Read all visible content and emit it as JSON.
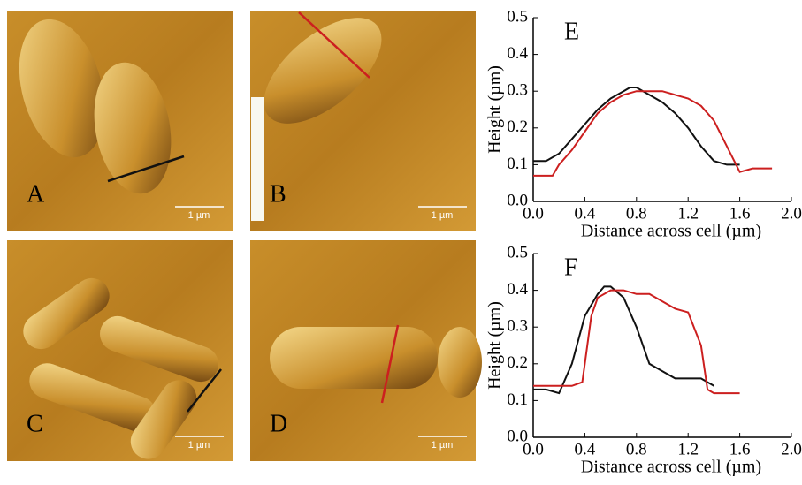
{
  "images": [
    {
      "label": "A",
      "scale_bar": "1 µm",
      "line_color": "#111111"
    },
    {
      "label": "B",
      "scale_bar": "1 µm",
      "line_color": "#cc1f1f"
    },
    {
      "label": "C",
      "scale_bar": "1 µm",
      "line_color": "#111111"
    },
    {
      "label": "D",
      "scale_bar": "1 µm",
      "line_color": "#cc1f1f"
    }
  ],
  "chart_data": [
    {
      "type": "line",
      "panel_label": "E",
      "x_label": "Distance across cell (µm)",
      "y_label": "Height (µm)",
      "xlim": [
        0,
        2
      ],
      "ylim": [
        0,
        0.5
      ],
      "xticks": [
        {
          "value": 0,
          "label": "0.0"
        },
        0.4,
        0.8,
        1.2,
        1.6,
        {
          "value": 2,
          "label": "2.0"
        }
      ],
      "yticks": [
        {
          "value": 0,
          "label": "0.0"
        },
        0.1,
        0.2,
        0.3,
        0.4,
        0.5
      ],
      "series": [
        {
          "color": "#111111",
          "x": [
            0,
            0.1,
            0.2,
            0.3,
            0.4,
            0.5,
            0.6,
            0.7,
            0.75,
            0.8,
            0.9,
            1.0,
            1.1,
            1.2,
            1.3,
            1.4,
            1.5,
            1.6
          ],
          "values": [
            0.11,
            0.11,
            0.13,
            0.17,
            0.21,
            0.25,
            0.28,
            0.3,
            0.31,
            0.31,
            0.29,
            0.27,
            0.24,
            0.2,
            0.15,
            0.11,
            0.1,
            0.1
          ]
        },
        {
          "color": "#cc1f1f",
          "x": [
            0,
            0.1,
            0.15,
            0.2,
            0.3,
            0.4,
            0.5,
            0.6,
            0.7,
            0.8,
            0.9,
            1.0,
            1.1,
            1.2,
            1.3,
            1.4,
            1.5,
            1.6,
            1.7,
            1.85
          ],
          "values": [
            0.07,
            0.07,
            0.07,
            0.1,
            0.14,
            0.19,
            0.24,
            0.27,
            0.29,
            0.3,
            0.3,
            0.3,
            0.29,
            0.28,
            0.26,
            0.22,
            0.15,
            0.08,
            0.09,
            0.09
          ]
        }
      ]
    },
    {
      "type": "line",
      "panel_label": "F",
      "x_label": "Distance across cell (µm)",
      "y_label": "Height (µm)",
      "xlim": [
        0,
        2
      ],
      "ylim": [
        0,
        0.5
      ],
      "xticks": [
        {
          "value": 0,
          "label": "0.0"
        },
        0.4,
        0.8,
        1.2,
        1.6,
        {
          "value": 2,
          "label": "2.0"
        }
      ],
      "yticks": [
        {
          "value": 0,
          "label": "0.0"
        },
        0.1,
        0.2,
        0.3,
        0.4,
        0.5
      ],
      "series": [
        {
          "color": "#111111",
          "x": [
            0,
            0.1,
            0.2,
            0.3,
            0.4,
            0.5,
            0.55,
            0.6,
            0.7,
            0.8,
            0.9,
            1.0,
            1.1,
            1.2,
            1.3,
            1.4
          ],
          "values": [
            0.13,
            0.13,
            0.12,
            0.2,
            0.33,
            0.39,
            0.41,
            0.41,
            0.38,
            0.3,
            0.2,
            0.18,
            0.16,
            0.16,
            0.16,
            0.14
          ]
        },
        {
          "color": "#cc1f1f",
          "x": [
            0,
            0.2,
            0.3,
            0.38,
            0.4,
            0.45,
            0.5,
            0.6,
            0.7,
            0.8,
            0.9,
            1.0,
            1.1,
            1.2,
            1.3,
            1.35,
            1.4,
            1.5,
            1.6
          ],
          "values": [
            0.14,
            0.14,
            0.14,
            0.15,
            0.2,
            0.33,
            0.38,
            0.4,
            0.4,
            0.39,
            0.39,
            0.37,
            0.35,
            0.34,
            0.25,
            0.13,
            0.12,
            0.12,
            0.12
          ]
        }
      ]
    }
  ]
}
